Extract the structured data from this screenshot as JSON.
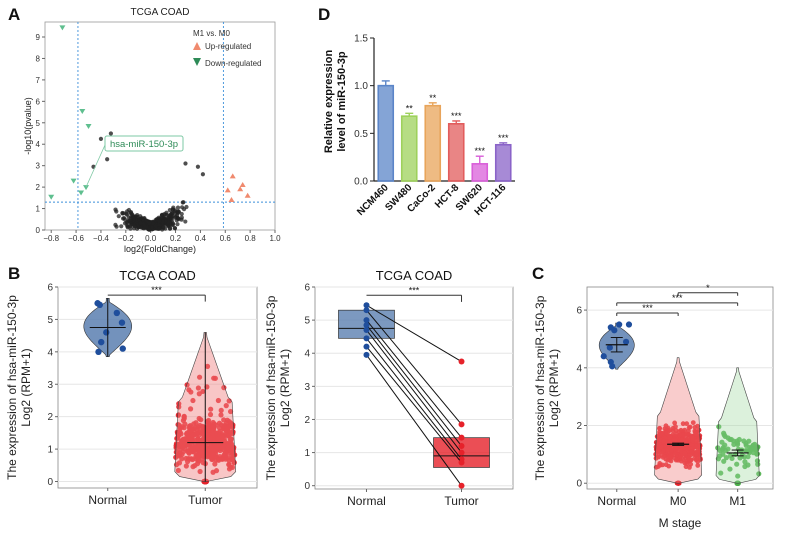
{
  "panel_labels": {
    "A": "A",
    "B": "B",
    "C": "C",
    "D": "D"
  },
  "chart_data": [
    {
      "id": "A",
      "type": "scatter",
      "title": "TCGA COAD",
      "xlabel": "log2(FoldChange)",
      "ylabel": "-log10(pvalue)",
      "xlim": [
        -0.85,
        1.0
      ],
      "ylim": [
        0,
        9.7
      ],
      "xticks": [
        "−0.8",
        "−0.6",
        "−0.4",
        "−0.2",
        "0.0",
        "0.2",
        "0.4",
        "0.6",
        "0.8",
        "1.0"
      ],
      "yticks": [
        "0",
        "1",
        "2",
        "3",
        "4",
        "5",
        "6",
        "7",
        "8",
        "9"
      ],
      "fc_thresholds": [
        -0.585,
        0.585
      ],
      "p_threshold": 1.3,
      "legend_title": "M1 vs. M0",
      "legend": [
        {
          "name": "Up-regulated",
          "color": "#f08a6e"
        },
        {
          "name": "Down-regulated",
          "color": "#2e8b57"
        }
      ],
      "annotation": "hsa-miR-150-3p",
      "colors": {
        "ns": "#222222",
        "up": "#f08a6e",
        "down": "#5fbf8f"
      },
      "up_points": [
        [
          0.62,
          1.85
        ],
        [
          0.66,
          2.5
        ],
        [
          0.72,
          1.9
        ],
        [
          0.78,
          1.6
        ],
        [
          0.65,
          1.4
        ],
        [
          0.74,
          2.1
        ]
      ],
      "down_points": [
        [
          -0.71,
          9.45
        ],
        [
          -0.55,
          5.55
        ],
        [
          -0.5,
          4.85
        ],
        [
          -0.52,
          2.0
        ],
        [
          -0.56,
          1.75
        ],
        [
          -0.62,
          2.3
        ],
        [
          -0.8,
          1.55
        ]
      ]
    },
    {
      "id": "B-left",
      "type": "violin",
      "title": "TCGA COAD",
      "ylabel": "The expression of hsa-miR-150-3p",
      "ylabel2": "Log2 (RPM+1)",
      "categories": [
        "Normal",
        "Tumor"
      ],
      "ylim": [
        -0.2,
        6
      ],
      "yticks": [
        "0",
        "1",
        "2",
        "3",
        "4",
        "5",
        "6"
      ],
      "medians": [
        4.75,
        1.2
      ],
      "ranges": [
        [
          3.85,
          5.65
        ],
        [
          0,
          4.6
        ]
      ],
      "significance": "***",
      "normal_points": [
        5.45,
        5.5,
        5.2,
        4.9,
        4.6,
        4.3,
        4.1,
        4.0
      ],
      "colors": {
        "normal": "#5b7fb0",
        "tumor": "#e6222a"
      }
    },
    {
      "id": "B-right",
      "type": "box_paired",
      "title": "TCGA COAD",
      "ylabel": "The expression of hsa-miR-150-3p",
      "ylabel2": "Log2 (RPM+1)",
      "categories": [
        "Normal",
        "Tumor"
      ],
      "ylim": [
        -0.1,
        6
      ],
      "yticks": [
        "0",
        "1",
        "2",
        "3",
        "4",
        "5",
        "6"
      ],
      "boxes": [
        {
          "q1": 4.45,
          "median": 4.75,
          "q3": 5.3
        },
        {
          "q1": 0.55,
          "median": 0.9,
          "q3": 1.45
        }
      ],
      "pairs": [
        [
          5.45,
          3.75
        ],
        [
          5.3,
          1.85
        ],
        [
          5.0,
          1.45
        ],
        [
          4.85,
          1.2
        ],
        [
          4.7,
          1.0
        ],
        [
          4.45,
          0.8
        ],
        [
          4.2,
          0.7
        ],
        [
          3.95,
          0.0
        ]
      ],
      "significance": "***",
      "colors": {
        "normal": "#5b7fb0",
        "tumor": "#e6222a"
      }
    },
    {
      "id": "C",
      "type": "violin",
      "ylabel": "The expression of hsa-miR-150-3p",
      "ylabel2": "Log2 (RPM+1)",
      "xlabel": "M stage",
      "categories": [
        "Normal",
        "M0",
        "M1"
      ],
      "ylim": [
        -0.2,
        6.8
      ],
      "yticks": [
        "0",
        "2",
        "4",
        "6"
      ],
      "means": [
        4.8,
        1.35,
        1.05
      ],
      "errors": [
        0.25,
        0.04,
        0.1
      ],
      "significance": [
        "***",
        "***",
        "*"
      ],
      "normal_points": [
        5.5,
        5.5,
        5.4,
        5.3,
        4.9,
        4.7,
        4.4,
        4.2,
        4.05
      ],
      "colors": {
        "normal": "#5b7fb0",
        "m0": "#e6222a",
        "m1": "#4daf4a"
      }
    },
    {
      "id": "D",
      "type": "bar",
      "ylabel": "Relative expression",
      "ylabel2": "level of miR-150-3p",
      "categories": [
        "NCM460",
        "SW480",
        "CaCo-2",
        "HCT-8",
        "SW620",
        "HCT-116"
      ],
      "values": [
        1.0,
        0.68,
        0.79,
        0.6,
        0.18,
        0.38
      ],
      "errors": [
        0.05,
        0.03,
        0.03,
        0.03,
        0.08,
        0.02
      ],
      "significance": [
        "",
        "**",
        "**",
        "***",
        "***",
        "***"
      ],
      "ylim": [
        0,
        1.5
      ],
      "yticks": [
        "0.0",
        "0.5",
        "1.0",
        "1.5"
      ],
      "colors": [
        "#5b85c8",
        "#9ed15b",
        "#e8a45a",
        "#e25c5c",
        "#d95fd9",
        "#8a63c8"
      ]
    }
  ]
}
